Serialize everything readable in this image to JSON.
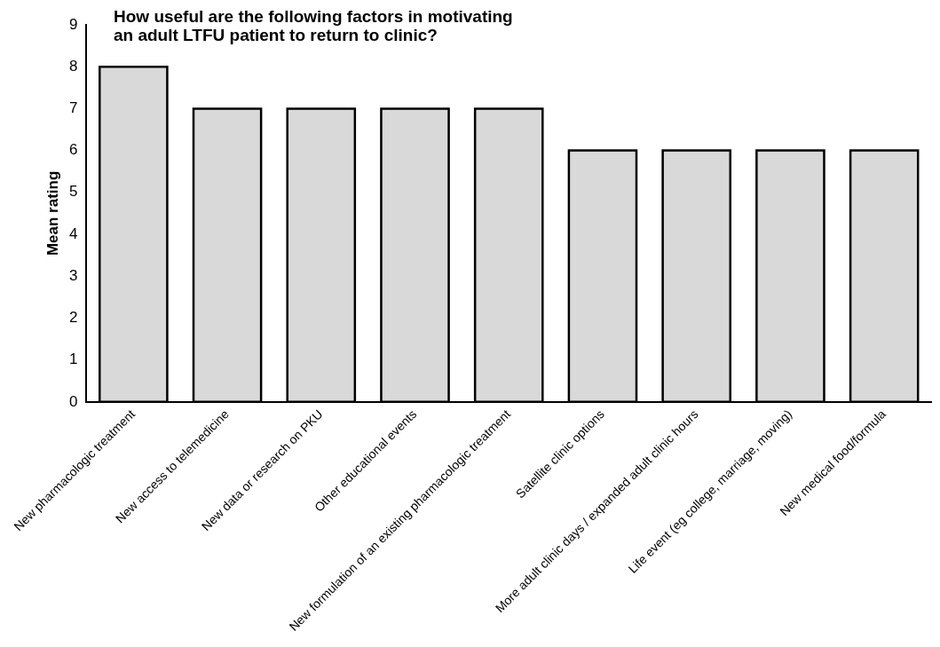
{
  "chart_data": {
    "type": "bar",
    "title": "How useful are the following factors in motivating\nan adult LTFU patient to return to clinic?",
    "ylabel": "Mean rating",
    "categories": [
      "New pharmacologic treatment",
      "New access to telemedicine",
      "New data or research on PKU",
      "Other educational events",
      "New formulation of an existing pharmacologic treatment",
      "Satellite clinic options",
      "More adult clinic days / expanded adult clinic hours",
      "Life event (eg college, marriage, moving)",
      "New medical food/formula"
    ],
    "values": [
      8,
      7,
      7,
      7,
      7,
      6,
      6,
      6,
      6
    ],
    "color": "#d9d9d9",
    "ylim": [
      0,
      9
    ],
    "yticks": [
      0,
      1,
      2,
      3,
      4,
      5,
      6,
      7,
      8,
      9
    ],
    "grid": false,
    "legend": false
  }
}
